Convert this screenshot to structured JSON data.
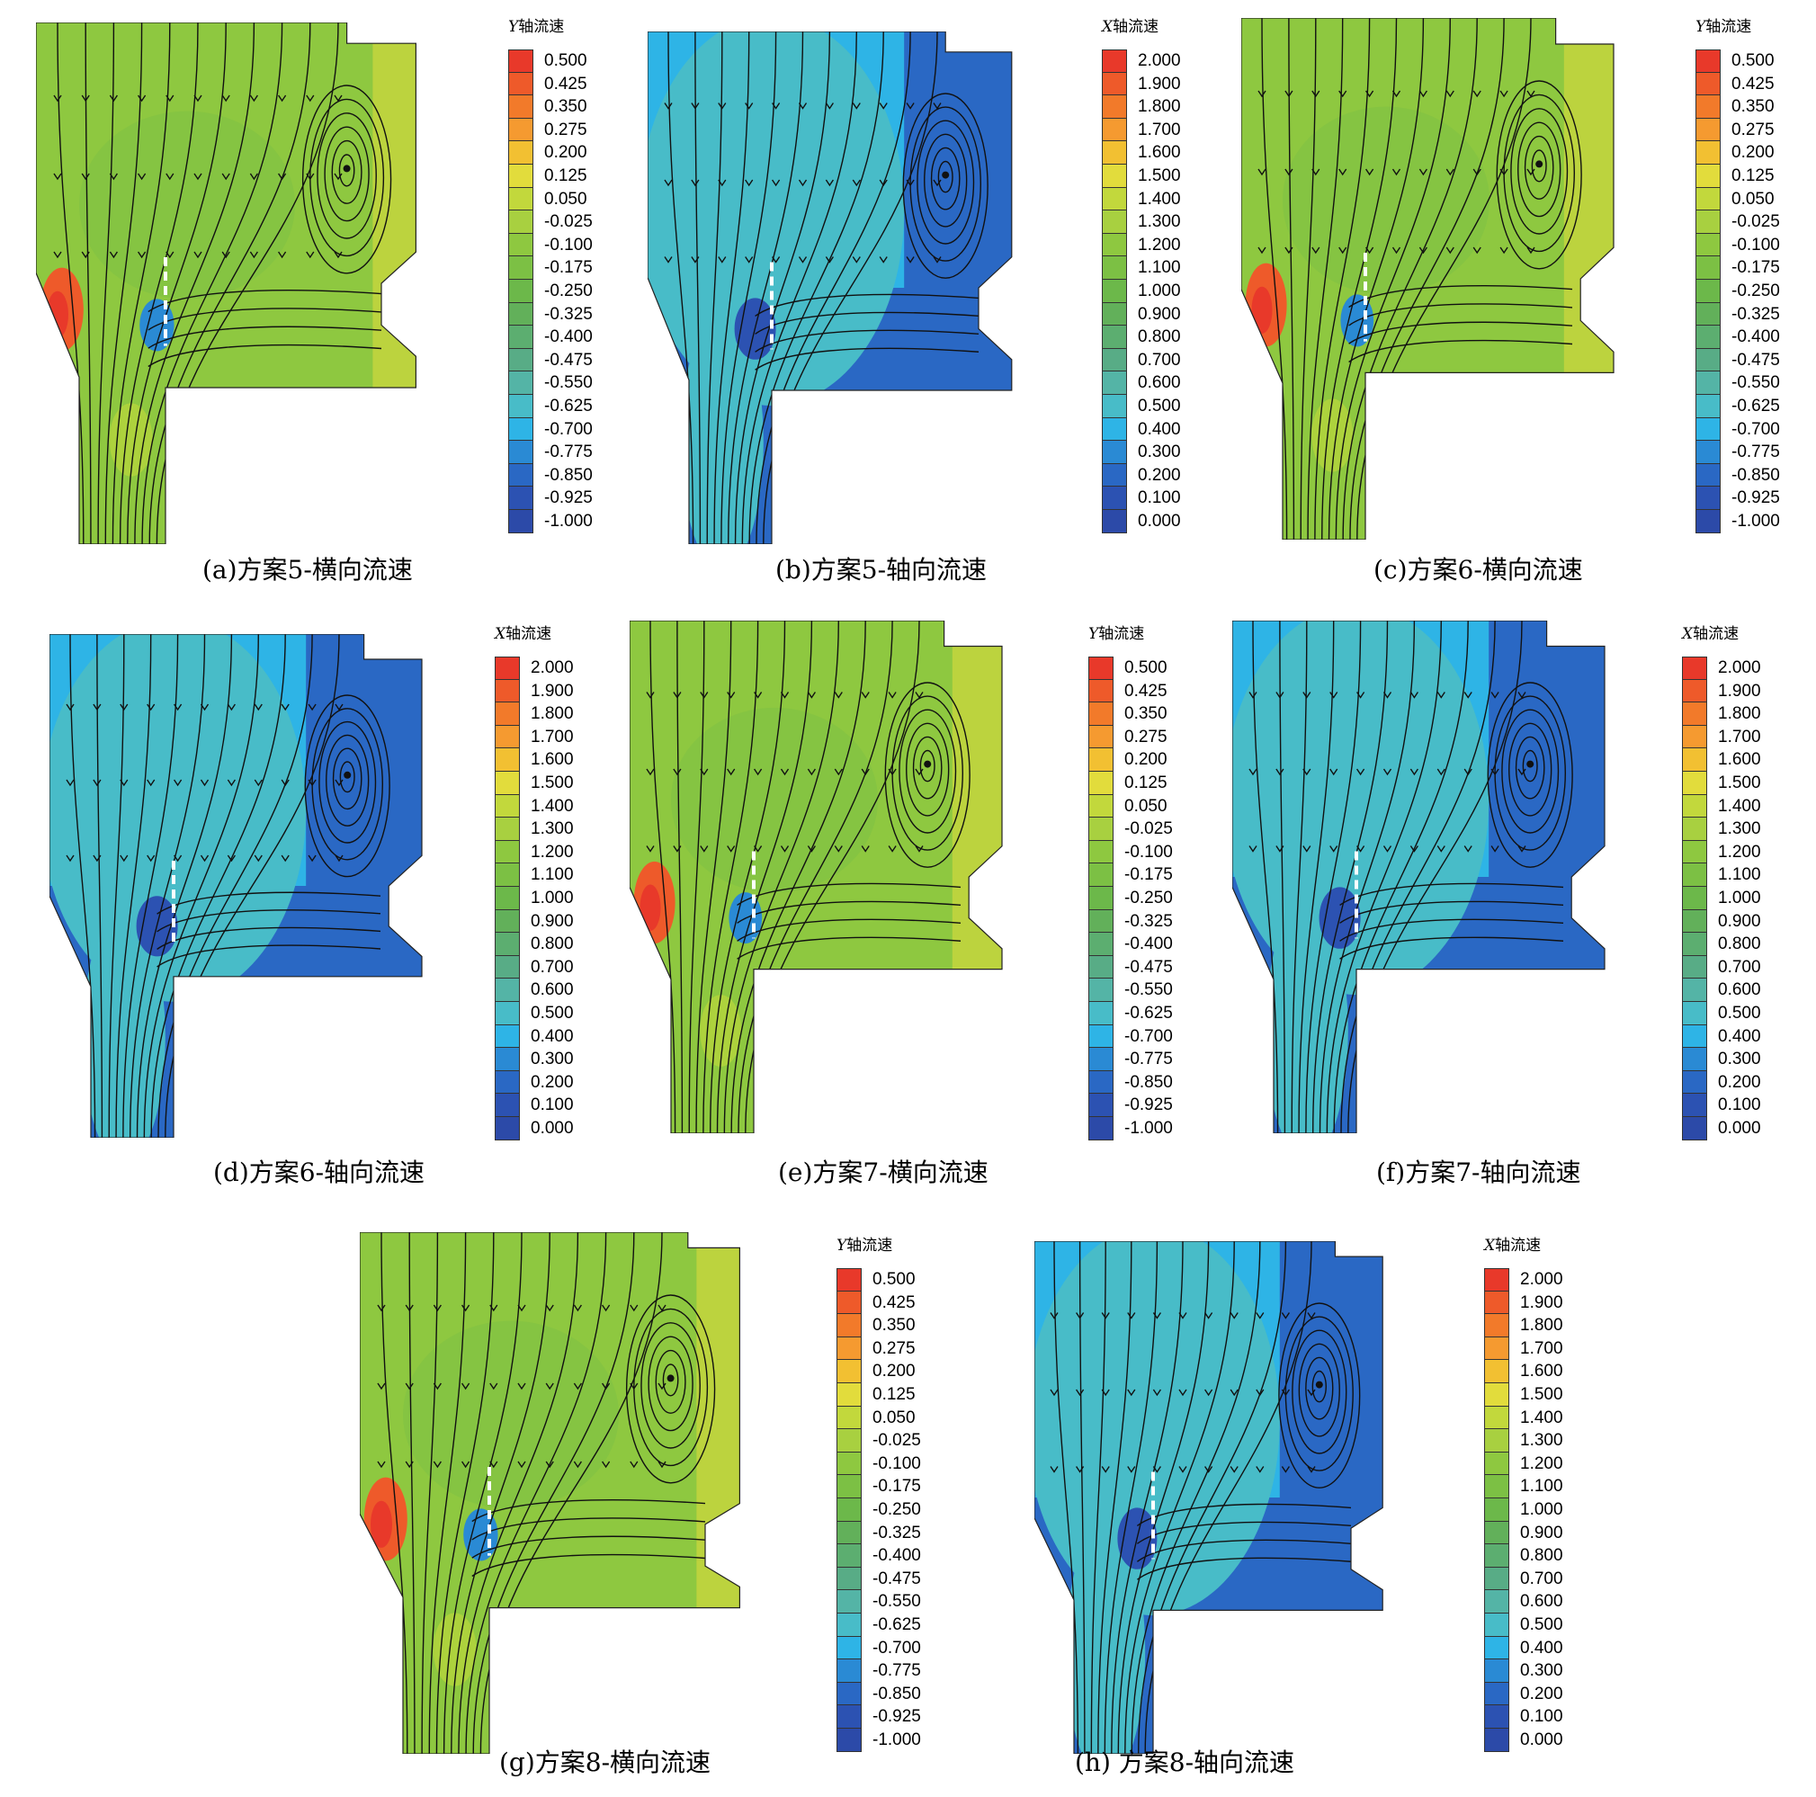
{
  "figure": {
    "panels": [
      {
        "id": "a",
        "caption": "(a)方案5-横向流速",
        "legend_axis": "Y",
        "legend_suffix": "轴流速",
        "scale": "y",
        "geometry": "A",
        "field": "lateral"
      },
      {
        "id": "b",
        "caption": "(b)方案5-轴向流速",
        "legend_axis": "X",
        "legend_suffix": "轴流速",
        "scale": "x",
        "geometry": "A",
        "field": "axial"
      },
      {
        "id": "c",
        "caption": "(c)方案6-横向流速",
        "legend_axis": "Y",
        "legend_suffix": "轴流速",
        "scale": "y",
        "geometry": "B",
        "field": "lateral"
      },
      {
        "id": "d",
        "caption": "(d)方案6-轴向流速",
        "legend_axis": "X",
        "legend_suffix": "轴流速",
        "scale": "x",
        "geometry": "B",
        "field": "axial"
      },
      {
        "id": "e",
        "caption": "(e)方案7-横向流速",
        "legend_axis": "Y",
        "legend_suffix": "轴流速",
        "scale": "y",
        "geometry": "B",
        "field": "lateral"
      },
      {
        "id": "f",
        "caption": "(f)方案7-轴向流速",
        "legend_axis": "X",
        "legend_suffix": "轴流速",
        "scale": "x",
        "geometry": "B",
        "field": "axial"
      },
      {
        "id": "g",
        "caption": "(g)方案8-横向流速",
        "legend_axis": "Y",
        "legend_suffix": "轴流速",
        "scale": "y",
        "geometry": "C",
        "field": "lateral"
      },
      {
        "id": "h",
        "caption": "(h) 方案8-轴向流速",
        "legend_axis": "X",
        "legend_suffix": "轴流速",
        "scale": "x",
        "geometry": "C",
        "field": "axial"
      }
    ]
  },
  "scales": {
    "y": {
      "values": [
        "0.500",
        "0.425",
        "0.350",
        "0.275",
        "0.200",
        "0.125",
        "0.050",
        "-0.025",
        "-0.100",
        "-0.175",
        "-0.250",
        "-0.325",
        "-0.400",
        "-0.475",
        "-0.550",
        "-0.625",
        "-0.700",
        "-0.775",
        "-0.850",
        "-0.925",
        "-1.000"
      ],
      "colors": [
        "#e8392a",
        "#ee5a2a",
        "#f27a2a",
        "#f59a30",
        "#f2c032",
        "#e2dc3c",
        "#c2d83c",
        "#a8d040",
        "#8ec840",
        "#7cc044",
        "#6cb84a",
        "#62b05a",
        "#5cae70",
        "#58ac86",
        "#54b4a6",
        "#48bcc8",
        "#2eb4e6",
        "#2a8ad4",
        "#2a68c4",
        "#2c52b2",
        "#2c4aa8"
      ]
    },
    "x": {
      "values": [
        "2.000",
        "1.900",
        "1.800",
        "1.700",
        "1.600",
        "1.500",
        "1.400",
        "1.300",
        "1.200",
        "1.100",
        "1.000",
        "0.900",
        "0.800",
        "0.700",
        "0.600",
        "0.500",
        "0.400",
        "0.300",
        "0.200",
        "0.100",
        "0.000"
      ],
      "colors": [
        "#e8392a",
        "#ee5a2a",
        "#f27a2a",
        "#f59a30",
        "#f2c032",
        "#e2dc3c",
        "#c2d83c",
        "#a8d040",
        "#8ec840",
        "#7cc044",
        "#6cb84a",
        "#62b05a",
        "#5cae70",
        "#58ac86",
        "#54b4a6",
        "#48bcc8",
        "#2eb4e6",
        "#2a8ad4",
        "#2a68c4",
        "#2c52b2",
        "#2c4aa8"
      ]
    }
  }
}
